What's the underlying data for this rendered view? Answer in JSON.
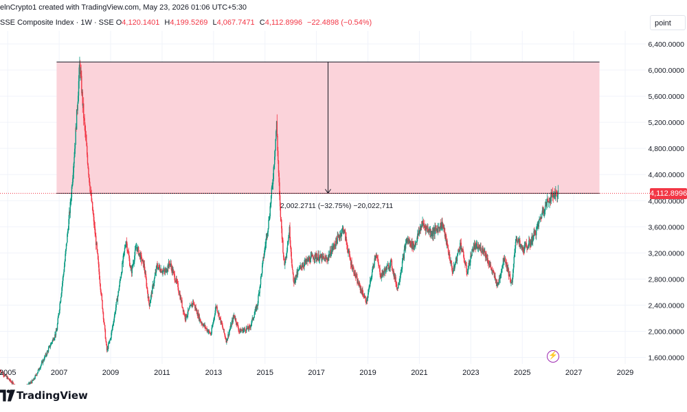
{
  "header": {
    "attribution": "elnCrypto1 created with TradingView.com, May 23, 2026 01:06 UTC+5:30"
  },
  "symbol": {
    "name": "SSE Composite Index · 1W · SSE",
    "open_label": "O",
    "open": "4,120.1401",
    "high_label": "H",
    "high": "4,199.5269",
    "low_label": "L",
    "low": "4,067.7471",
    "close_label": "C",
    "close": "4,112.8996",
    "change": "−22.4898 (−0.54%)"
  },
  "unit_label": "point",
  "current_price_label": "4,112.8996",
  "measure_label": "2,002.2711 (−32.75%) −20,022,711",
  "brand": "TradingView",
  "colors": {
    "up": "#089981",
    "down": "#f23645",
    "zone": "#fbd3da",
    "price_tag": "#f23645"
  },
  "chart_data": {
    "type": "candlestick",
    "title": "SSE Composite Index · 1W · SSE",
    "y_axis": {
      "min": 1500,
      "max": 6600,
      "ticks": [
        1600,
        2000,
        2400,
        2800,
        3200,
        3600,
        4000,
        4400,
        4800,
        5200,
        5600,
        6000,
        6400
      ],
      "tick_labels": [
        "1,600.0000",
        "2,000.0000",
        "2,400.0000",
        "2,800.0000",
        "3,200.0000",
        "3,600.0000",
        "4,000.0000",
        "4,400.0000",
        "4,800.0000",
        "5,200.0000",
        "5,600.0000",
        "6,000.0000",
        "6,400.0000"
      ],
      "position": "right"
    },
    "x_axis": {
      "start": 2004.7,
      "end": 2029.8,
      "ticks": [
        2005,
        2007,
        2009,
        2011,
        2013,
        2015,
        2017,
        2019,
        2021,
        2023,
        2025,
        2027,
        2029
      ],
      "tick_labels": [
        "2005",
        "2007",
        "2009",
        "2011",
        "2013",
        "2015",
        "2017",
        "2019",
        "2021",
        "2023",
        "2025",
        "2027",
        "2029"
      ]
    },
    "price_path": [
      [
        2004.7,
        1400
      ],
      [
        2005.5,
        1080
      ],
      [
        2006.0,
        1250
      ],
      [
        2006.5,
        1650
      ],
      [
        2006.9,
        2000
      ],
      [
        2007.2,
        3000
      ],
      [
        2007.45,
        4000
      ],
      [
        2007.62,
        4900
      ],
      [
        2007.8,
        6100
      ],
      [
        2007.95,
        5300
      ],
      [
        2008.2,
        4200
      ],
      [
        2008.45,
        3300
      ],
      [
        2008.7,
        2300
      ],
      [
        2008.85,
        1700
      ],
      [
        2009.0,
        1900
      ],
      [
        2009.3,
        2600
      ],
      [
        2009.6,
        3400
      ],
      [
        2009.8,
        2900
      ],
      [
        2010.0,
        3300
      ],
      [
        2010.3,
        3000
      ],
      [
        2010.5,
        2400
      ],
      [
        2010.8,
        3000
      ],
      [
        2011.1,
        2900
      ],
      [
        2011.3,
        3050
      ],
      [
        2011.6,
        2700
      ],
      [
        2011.9,
        2200
      ],
      [
        2012.2,
        2450
      ],
      [
        2012.5,
        2150
      ],
      [
        2012.9,
        1950
      ],
      [
        2013.1,
        2400
      ],
      [
        2013.5,
        1850
      ],
      [
        2013.8,
        2250
      ],
      [
        2014.0,
        2000
      ],
      [
        2014.4,
        2050
      ],
      [
        2014.7,
        2400
      ],
      [
        2014.95,
        3150
      ],
      [
        2015.15,
        3700
      ],
      [
        2015.3,
        4300
      ],
      [
        2015.45,
        5178
      ],
      [
        2015.58,
        3900
      ],
      [
        2015.75,
        3000
      ],
      [
        2015.95,
        3550
      ],
      [
        2016.1,
        2750
      ],
      [
        2016.4,
        3000
      ],
      [
        2016.9,
        3150
      ],
      [
        2017.4,
        3100
      ],
      [
        2017.8,
        3400
      ],
      [
        2018.05,
        3580
      ],
      [
        2018.3,
        3100
      ],
      [
        2018.6,
        2750
      ],
      [
        2018.95,
        2450
      ],
      [
        2019.3,
        3200
      ],
      [
        2019.5,
        2850
      ],
      [
        2019.9,
        3050
      ],
      [
        2020.15,
        2650
      ],
      [
        2020.5,
        3400
      ],
      [
        2020.8,
        3300
      ],
      [
        2021.1,
        3650
      ],
      [
        2021.5,
        3500
      ],
      [
        2021.9,
        3650
      ],
      [
        2022.3,
        2900
      ],
      [
        2022.6,
        3350
      ],
      [
        2022.85,
        2900
      ],
      [
        2023.1,
        3300
      ],
      [
        2023.5,
        3250
      ],
      [
        2023.8,
        2950
      ],
      [
        2024.05,
        2700
      ],
      [
        2024.3,
        3150
      ],
      [
        2024.6,
        2700
      ],
      [
        2024.75,
        3450
      ],
      [
        2025.0,
        3250
      ],
      [
        2025.3,
        3350
      ],
      [
        2025.55,
        3550
      ],
      [
        2025.8,
        3850
      ],
      [
        2026.0,
        4000
      ],
      [
        2026.2,
        4100
      ],
      [
        2026.4,
        4113
      ]
    ],
    "measure_zone": {
      "x_start": 2006.9,
      "x_end": 2028.0,
      "y_top": 6124,
      "y_bottom": 4113
    }
  }
}
